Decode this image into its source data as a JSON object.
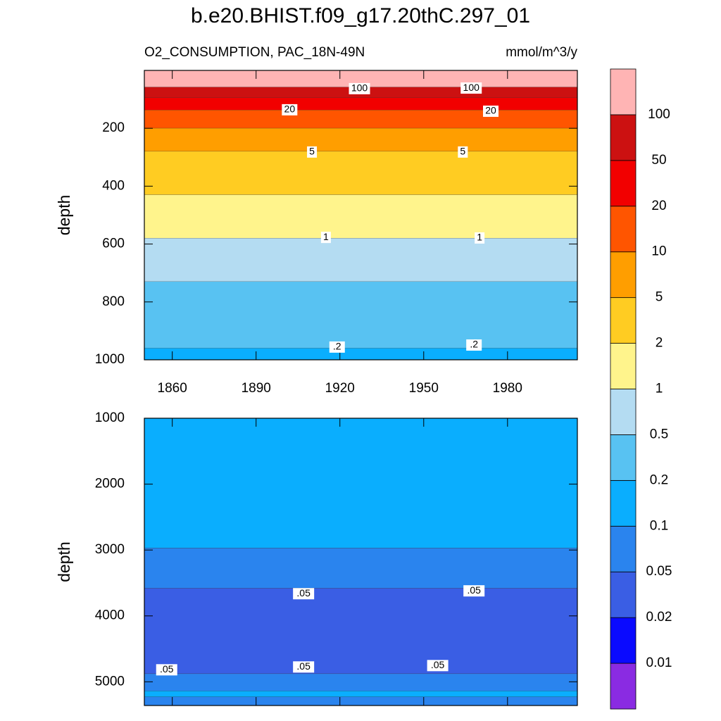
{
  "title": "b.e20.BHIST.f09_g17.20thC.297_01",
  "chart_data": [
    {
      "type": "contour",
      "subtitle_left": "O2_CONSUMPTION, PAC_18N-49N",
      "subtitle_right": "mmol/m^3/y",
      "ylabel": "depth",
      "xlim": [
        1850,
        2005
      ],
      "xticks": [
        1860,
        1890,
        1920,
        1950,
        1980
      ],
      "xtick_labels": true,
      "ylim": [
        0,
        1000
      ],
      "yticks": [
        200,
        400,
        600,
        800,
        1000
      ],
      "y_reversed": true,
      "bands": [
        {
          "top": 0,
          "bottom": 58,
          "min": 100
        },
        {
          "top": 58,
          "bottom": 95,
          "min": 50
        },
        {
          "top": 95,
          "bottom": 137,
          "min": 20
        },
        {
          "top": 137,
          "bottom": 200,
          "min": 10
        },
        {
          "top": 200,
          "bottom": 280,
          "min": 5
        },
        {
          "top": 280,
          "bottom": 430,
          "min": 2
        },
        {
          "top": 430,
          "bottom": 580,
          "min": 1
        },
        {
          "top": 580,
          "bottom": 730,
          "min": 0.5
        },
        {
          "top": 730,
          "bottom": 960,
          "min": 0.2
        },
        {
          "top": 960,
          "bottom": 1000,
          "min": 0.1
        }
      ],
      "contour_labels": [
        {
          "value": 100,
          "x": 1927,
          "y": 63
        },
        {
          "value": 100,
          "x": 1967,
          "y": 61
        },
        {
          "value": 20,
          "x": 1902,
          "y": 136
        },
        {
          "value": 20,
          "x": 1974,
          "y": 141
        },
        {
          "value": 5,
          "x": 1910,
          "y": 282
        },
        {
          "value": 5,
          "x": 1964,
          "y": 282
        },
        {
          "value": 1,
          "x": 1915,
          "y": 577
        },
        {
          "value": 1,
          "x": 1970,
          "y": 579
        },
        {
          "value": 0.2,
          "label": ".2",
          "x": 1919,
          "y": 956
        },
        {
          "value": 0.2,
          "label": ".2",
          "x": 1968,
          "y": 949
        }
      ]
    },
    {
      "type": "contour",
      "ylabel": "depth",
      "xlim": [
        1850,
        2005
      ],
      "xticks": [
        1860,
        1890,
        1920,
        1950,
        1980
      ],
      "xtick_labels": false,
      "ylim": [
        1000,
        5360
      ],
      "yticks": [
        1000,
        2000,
        3000,
        4000,
        5000
      ],
      "y_reversed": true,
      "bands": [
        {
          "top": 1000,
          "bottom": 2970,
          "min": 0.1
        },
        {
          "top": 2970,
          "bottom": 3580,
          "min": 0.05
        },
        {
          "top": 3580,
          "bottom": 4880,
          "min": 0.02
        },
        {
          "top": 4880,
          "bottom": 5140,
          "min": 0.05
        },
        {
          "top": 5140,
          "bottom": 5230,
          "min": 0.1
        },
        {
          "top": 5230,
          "bottom": 5360,
          "min": 0.05
        }
      ],
      "contour_labels": [
        {
          "value": 0.05,
          "label": ".05",
          "x": 1907,
          "y": 3663
        },
        {
          "value": 0.05,
          "label": ".05",
          "x": 1968,
          "y": 3620
        },
        {
          "value": 0.05,
          "label": ".05",
          "x": 1858,
          "y": 4818
        },
        {
          "value": 0.05,
          "label": ".05",
          "x": 1907,
          "y": 4775
        },
        {
          "value": 0.05,
          "label": ".05",
          "x": 1955,
          "y": 4754
        }
      ]
    }
  ],
  "colorbar": {
    "levels": [
      0.01,
      0.02,
      0.05,
      0.1,
      0.2,
      0.5,
      1,
      2,
      5,
      10,
      20,
      50,
      100
    ],
    "colors": [
      "#8a2be2",
      "#0a0aff",
      "#3a5ee4",
      "#2a84ee",
      "#0aaefe",
      "#58c2f2",
      "#b4dcf2",
      "#fff48c",
      "#ffcc22",
      "#ff9e00",
      "#ff5500",
      "#f20000",
      "#cc1111",
      "#ffb4b4"
    ]
  }
}
